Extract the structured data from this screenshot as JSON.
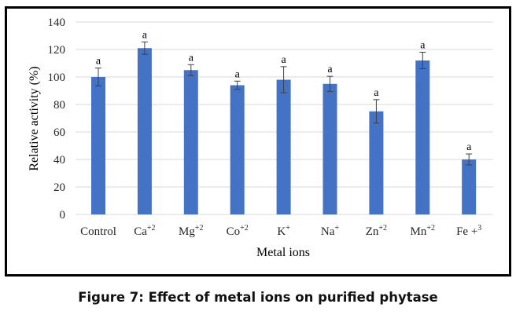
{
  "chart_data": {
    "type": "bar",
    "title": "",
    "xlabel": "Metal ions",
    "ylabel": "Relative activity (%)",
    "ylim": [
      0,
      140
    ],
    "yticks": [
      "0",
      "20",
      "40",
      "60",
      "80",
      "100",
      "120",
      "140"
    ],
    "ytick_values": [
      0,
      20,
      40,
      60,
      80,
      100,
      120,
      140
    ],
    "grid": true,
    "categories": [
      {
        "base": "Control",
        "sup": ""
      },
      {
        "base": "Ca",
        "sup": "+2"
      },
      {
        "base": "Mg",
        "sup": "+2"
      },
      {
        "base": "Co",
        "sup": "+2"
      },
      {
        "base": "K",
        "sup": "+"
      },
      {
        "base": "Na",
        "sup": "+"
      },
      {
        "base": "Zn",
        "sup": "+2"
      },
      {
        "base": "Mn",
        "sup": "+2"
      },
      {
        "base": "Fe +",
        "sup": "3"
      }
    ],
    "values": [
      100,
      121,
      105,
      94,
      98,
      95,
      75,
      112,
      40
    ],
    "errors": [
      6.5,
      4.5,
      4,
      3,
      9.5,
      5.5,
      8.5,
      6,
      4
    ],
    "significance_labels": [
      "a",
      "a",
      "a",
      "a",
      "a",
      "a",
      "a",
      "a",
      "a"
    ],
    "bar_color": "#4472c4",
    "grid_color": "#d9d9d9",
    "error_color": "#404040"
  },
  "caption": "Figure 7: Effect of metal ions on purified phytase"
}
